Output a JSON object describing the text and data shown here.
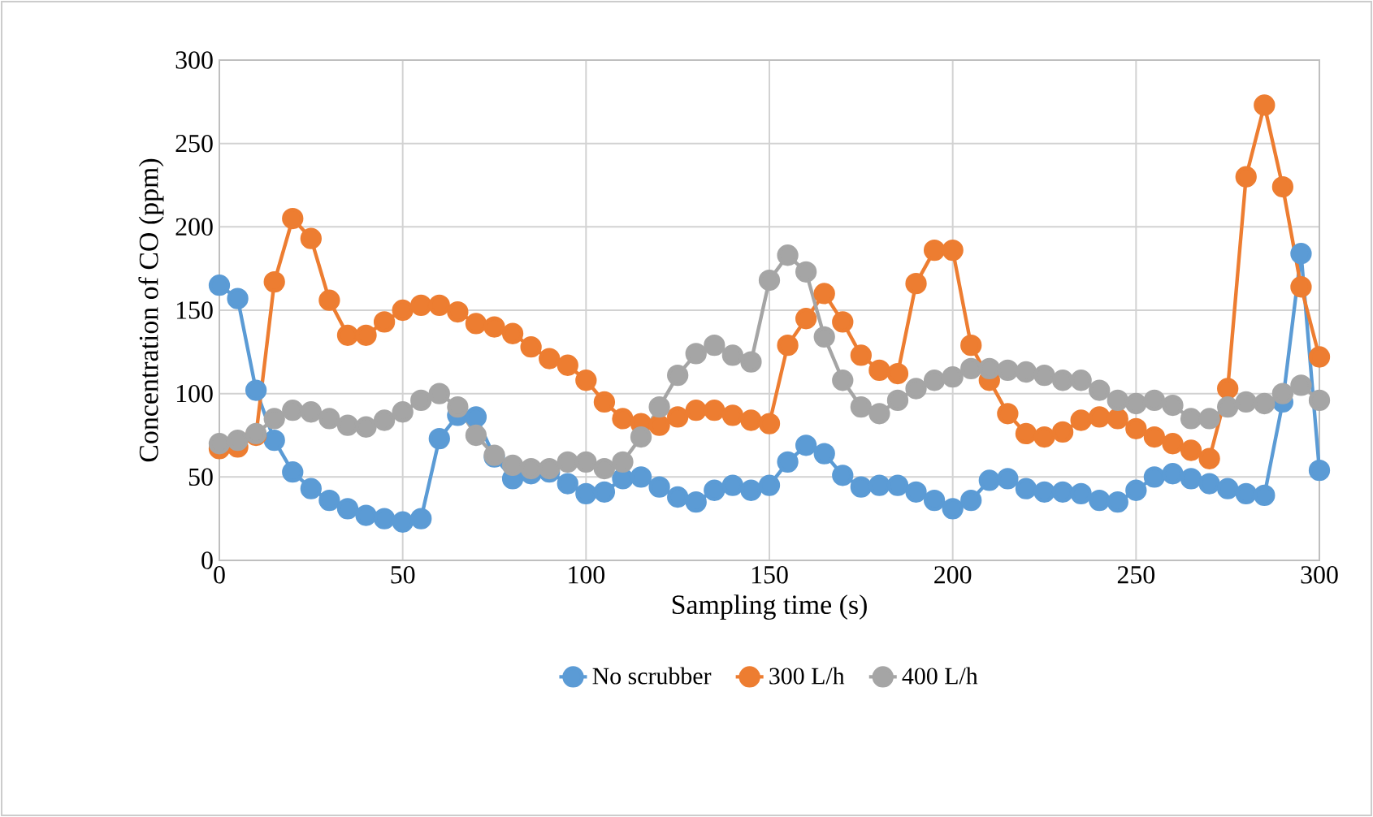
{
  "chart_data": {
    "type": "line",
    "xlabel": "Sampling time (s)",
    "ylabel": "Concentration of CO (ppm)",
    "x": [
      0,
      5,
      10,
      15,
      20,
      25,
      30,
      35,
      40,
      45,
      50,
      55,
      60,
      65,
      70,
      75,
      80,
      85,
      90,
      95,
      100,
      105,
      110,
      115,
      120,
      125,
      130,
      135,
      140,
      145,
      150,
      155,
      160,
      165,
      170,
      175,
      180,
      185,
      190,
      195,
      200,
      205,
      210,
      215,
      220,
      225,
      230,
      235,
      240,
      245,
      250,
      255,
      260,
      265,
      270,
      275,
      280,
      285,
      290,
      295,
      300
    ],
    "series": [
      {
        "name": "No scrubber",
        "color": "#5b9bd5",
        "values": [
          165,
          157,
          102,
          72,
          53,
          43,
          36,
          31,
          27,
          25,
          23,
          25,
          73,
          87,
          86,
          62,
          49,
          52,
          53,
          46,
          40,
          41,
          49,
          50,
          44,
          38,
          35,
          42,
          45,
          42,
          45,
          59,
          69,
          64,
          51,
          44,
          45,
          45,
          41,
          36,
          31,
          36,
          48,
          49,
          43,
          41,
          41,
          40,
          36,
          35,
          42,
          50,
          52,
          49,
          46,
          43,
          40,
          39,
          95,
          184,
          54
        ]
      },
      {
        "name": "300 L/h",
        "color": "#ed7d31",
        "values": [
          67,
          68,
          75,
          167,
          205,
          193,
          156,
          135,
          135,
          143,
          150,
          153,
          153,
          149,
          142,
          140,
          136,
          128,
          121,
          117,
          108,
          95,
          85,
          82,
          81,
          86,
          90,
          90,
          87,
          84,
          82,
          129,
          145,
          160,
          143,
          123,
          114,
          112,
          166,
          186,
          186,
          129,
          108,
          88,
          76,
          74,
          77,
          84,
          86,
          85,
          79,
          74,
          70,
          66,
          61,
          103,
          230,
          273,
          224,
          164,
          122
        ]
      },
      {
        "name": "400 L/h",
        "color": "#a5a5a5",
        "values": [
          70,
          72,
          76,
          85,
          90,
          89,
          85,
          81,
          80,
          84,
          89,
          96,
          100,
          92,
          75,
          63,
          57,
          55,
          55,
          59,
          59,
          55,
          59,
          74,
          92,
          111,
          124,
          129,
          123,
          119,
          168,
          183,
          173,
          134,
          108,
          92,
          88,
          96,
          103,
          108,
          110,
          115,
          115,
          114,
          113,
          111,
          108,
          108,
          102,
          96,
          94,
          96,
          93,
          85,
          85,
          92,
          95,
          94,
          100,
          105,
          96
        ]
      }
    ],
    "xlim": [
      0,
      300
    ],
    "ylim": [
      0,
      300
    ],
    "xticks": [
      0,
      50,
      100,
      150,
      200,
      250,
      300
    ],
    "yticks": [
      0,
      50,
      100,
      150,
      200,
      250,
      300
    ],
    "grid": true,
    "legend": "bottom",
    "marker": "circle",
    "line_style": "solid"
  }
}
